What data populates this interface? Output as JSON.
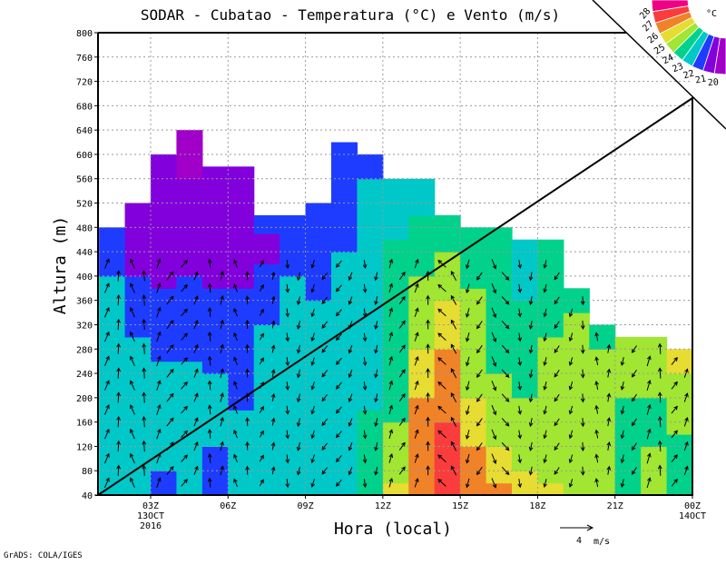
{
  "chart_data": {
    "type": "heatmap",
    "title": "SODAR - Cubatao - Temperatura (°C) e Vento (m/s)",
    "xlabel": "Hora (local)",
    "ylabel": "Altura (m)",
    "ylim": [
      40,
      800
    ],
    "yticks": [
      40,
      80,
      120,
      160,
      200,
      240,
      280,
      320,
      360,
      400,
      440,
      480,
      520,
      560,
      600,
      640,
      680,
      720,
      760,
      800
    ],
    "xlim_hours": [
      0.96,
      24
    ],
    "xticks": [
      {
        "hour": 3,
        "label": "03Z",
        "sub1": "13OCT",
        "sub2": "2016"
      },
      {
        "hour": 6,
        "label": "06Z"
      },
      {
        "hour": 9,
        "label": "09Z"
      },
      {
        "hour": 12,
        "label": "12Z"
      },
      {
        "hour": 15,
        "label": "15Z"
      },
      {
        "hour": 18,
        "label": "18Z"
      },
      {
        "hour": 21,
        "label": "21Z"
      },
      {
        "hour": 24,
        "label": "00Z",
        "sub1": "14OCT"
      }
    ],
    "grid": true,
    "colorbar": {
      "unit": "°C",
      "levels": [
        "28",
        "27",
        "26",
        "25",
        "24",
        "23",
        "22",
        "21",
        "20"
      ],
      "colors": [
        "#f00082",
        "#fa3c3c",
        "#f08228",
        "#e6dc32",
        "#a0e632",
        "#00d28c",
        "#00c8c8",
        "#1e3cff",
        "#8200dc",
        "#a000c8"
      ]
    },
    "wind_reference": {
      "value": "4",
      "unit": "m/s"
    },
    "columns": [
      {
        "hour": 1,
        "segments": [
          [
            400,
            22.5
          ],
          [
            480,
            21.5
          ]
        ],
        "wind": [
          10,
          2.5
        ]
      },
      {
        "hour": 2,
        "segments": [
          [
            300,
            22.5
          ],
          [
            400,
            21.5
          ],
          [
            520,
            20.5
          ]
        ],
        "wind": [
          350,
          2.5
        ]
      },
      {
        "hour": 3,
        "segments": [
          [
            80,
            21.5
          ],
          [
            260,
            22.5
          ],
          [
            380,
            21.5
          ],
          [
            600,
            20.5
          ]
        ],
        "wind": [
          20,
          2.5
        ]
      },
      {
        "hour": 4,
        "segments": [
          [
            260,
            22.5
          ],
          [
            400,
            21.5
          ],
          [
            560,
            20.5
          ],
          [
            640,
            19.5
          ]
        ],
        "wind": [
          30,
          2.2
        ]
      },
      {
        "hour": 5,
        "segments": [
          [
            120,
            21.5
          ],
          [
            240,
            22.5
          ],
          [
            380,
            21.5
          ],
          [
            580,
            20.5
          ]
        ],
        "wind": [
          10,
          2.2
        ]
      },
      {
        "hour": 6,
        "segments": [
          [
            180,
            22.5
          ],
          [
            380,
            21.5
          ],
          [
            580,
            20.5
          ]
        ],
        "wind": [
          340,
          2.0
        ]
      },
      {
        "hour": 7,
        "segments": [
          [
            320,
            22.5
          ],
          [
            420,
            21.5
          ],
          [
            470,
            20.5
          ],
          [
            500,
            21.5
          ]
        ],
        "wind": [
          20,
          1.8
        ]
      },
      {
        "hour": 8,
        "segments": [
          [
            400,
            22.5
          ],
          [
            500,
            21.5
          ]
        ],
        "wind": [
          190,
          2.0
        ]
      },
      {
        "hour": 9,
        "segments": [
          [
            360,
            22.5
          ],
          [
            520,
            21.5
          ]
        ],
        "wind": [
          200,
          2.0
        ]
      },
      {
        "hour": 10,
        "segments": [
          [
            440,
            22.5
          ],
          [
            620,
            21.5
          ]
        ],
        "wind": [
          210,
          2.0
        ]
      },
      {
        "hour": 11,
        "segments": [
          [
            180,
            23.5
          ],
          [
            560,
            22.5
          ],
          [
            600,
            21.5
          ]
        ],
        "wind": [
          190,
          2.0
        ]
      },
      {
        "hour": 12,
        "segments": [
          [
            60,
            25.5
          ],
          [
            160,
            24.5
          ],
          [
            460,
            23.5
          ],
          [
            560,
            22.5
          ]
        ],
        "wind": [
          20,
          2.2
        ]
      },
      {
        "hour": 13,
        "segments": [
          [
            200,
            26.5
          ],
          [
            280,
            25.5
          ],
          [
            400,
            24.5
          ],
          [
            500,
            23.5
          ],
          [
            560,
            22.5
          ]
        ],
        "wind": [
          10,
          2.2
        ]
      },
      {
        "hour": 14,
        "segments": [
          [
            160,
            27.5
          ],
          [
            280,
            26.5
          ],
          [
            360,
            25.5
          ],
          [
            440,
            24.5
          ],
          [
            500,
            23.5
          ]
        ],
        "wind": [
          330,
          2.5
        ]
      },
      {
        "hour": 15,
        "segments": [
          [
            120,
            26.5
          ],
          [
            200,
            25.5
          ],
          [
            380,
            24.5
          ],
          [
            480,
            23.5
          ]
        ],
        "wind": [
          200,
          2.2
        ]
      },
      {
        "hour": 16,
        "segments": [
          [
            60,
            26.5
          ],
          [
            120,
            25.5
          ],
          [
            240,
            24.5
          ],
          [
            480,
            23.5
          ]
        ],
        "wind": [
          150,
          2.5
        ]
      },
      {
        "hour": 17,
        "segments": [
          [
            80,
            25.5
          ],
          [
            200,
            24.5
          ],
          [
            360,
            23.5
          ],
          [
            460,
            22.5
          ]
        ],
        "wind": [
          190,
          2.0
        ]
      },
      {
        "hour": 18,
        "segments": [
          [
            60,
            25.5
          ],
          [
            300,
            24.5
          ],
          [
            460,
            23.5
          ]
        ],
        "wind": [
          200,
          2.0
        ]
      },
      {
        "hour": 19,
        "segments": [
          [
            340,
            24.5
          ],
          [
            380,
            23.5
          ]
        ],
        "wind": [
          190,
          2.0
        ]
      },
      {
        "hour": 20,
        "segments": [
          [
            280,
            24.5
          ],
          [
            320,
            23.5
          ]
        ],
        "wind": [
          10,
          2.0
        ]
      },
      {
        "hour": 21,
        "segments": [
          [
            200,
            23.5
          ],
          [
            300,
            24.5
          ]
        ],
        "wind": [
          200,
          2.0
        ]
      },
      {
        "hour": 22,
        "segments": [
          [
            120,
            24.5
          ],
          [
            200,
            23.5
          ],
          [
            300,
            24.5
          ]
        ],
        "wind": [
          10,
          2.5
        ]
      },
      {
        "hour": 23,
        "segments": [
          [
            140,
            23.5
          ],
          [
            240,
            24.5
          ],
          [
            280,
            25.5
          ]
        ],
        "wind": [
          20,
          2.2
        ]
      }
    ]
  },
  "footer": "GrADS: COLA/IGES"
}
